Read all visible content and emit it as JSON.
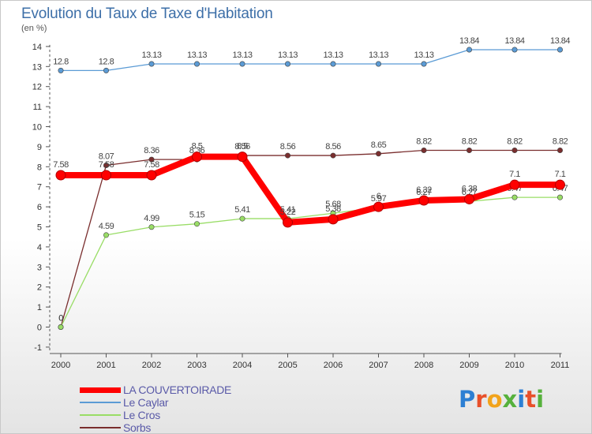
{
  "page": {
    "title": "Evolution du Taux de Taxe d'Habitation",
    "subtitle": "(en %)",
    "logo": "Proxiti"
  },
  "chart_data": {
    "type": "line",
    "title": "Evolution du Taux de Taxe d'Habitation",
    "subtitle": "(en %)",
    "xlabel": "",
    "ylabel": "",
    "x": [
      "2000",
      "2001",
      "2002",
      "2003",
      "2004",
      "2005",
      "2006",
      "2007",
      "2008",
      "2009",
      "2010",
      "2011"
    ],
    "yticks": [
      -1,
      0,
      1,
      2,
      3,
      4,
      5,
      6,
      7,
      8,
      9,
      10,
      11,
      12,
      13,
      14
    ],
    "ylim": [
      -1,
      14
    ],
    "grid": false,
    "legend_position": "bottom-left",
    "series": [
      {
        "name": "LA COUVERTOIRADE",
        "color": "#ff0000",
        "values": [
          7.58,
          7.58,
          7.58,
          8.5,
          8.5,
          5.22,
          5.38,
          6,
          6.32,
          6.38,
          7.1,
          7.1
        ],
        "labels": [
          "7.58",
          "7.58",
          "7.58",
          "8.5",
          "8.5",
          "5.22",
          "5.38",
          "6",
          "6.32",
          "6.38",
          "7.1",
          "7.1"
        ]
      },
      {
        "name": "Le Caylar",
        "color": "#5b9bd5",
        "values": [
          12.8,
          12.8,
          13.13,
          13.13,
          13.13,
          13.13,
          13.13,
          13.13,
          13.13,
          13.84,
          13.84,
          13.84
        ],
        "labels": [
          "12.8",
          "12.8",
          "13.13",
          "13.13",
          "13.13",
          "13.13",
          "13.13",
          "13.13",
          "13.13",
          "13.84",
          "13.84",
          "13.84"
        ]
      },
      {
        "name": "Le Cros",
        "color": "#99dd66",
        "values": [
          0,
          4.59,
          4.99,
          5.15,
          5.41,
          5.41,
          5.68,
          5.97,
          6.27,
          6.27,
          6.47,
          6.47
        ],
        "labels": [
          "0",
          "4.59",
          "4.99",
          "5.15",
          "5.41",
          "5.41",
          "5.68",
          "5.97",
          "6.27",
          "6.27",
          "6.47",
          "6.47"
        ]
      },
      {
        "name": "Sorbs",
        "color": "#7a2e2e",
        "values": [
          0,
          8.07,
          8.36,
          8.36,
          8.56,
          8.56,
          8.56,
          8.65,
          8.82,
          8.82,
          8.82,
          8.82
        ],
        "labels": [
          "0",
          "8.07",
          "8.36",
          "8.36",
          "8.56",
          "8.56",
          "8.56",
          "8.65",
          "8.82",
          "8.82",
          "8.82",
          "8.82"
        ]
      }
    ]
  }
}
